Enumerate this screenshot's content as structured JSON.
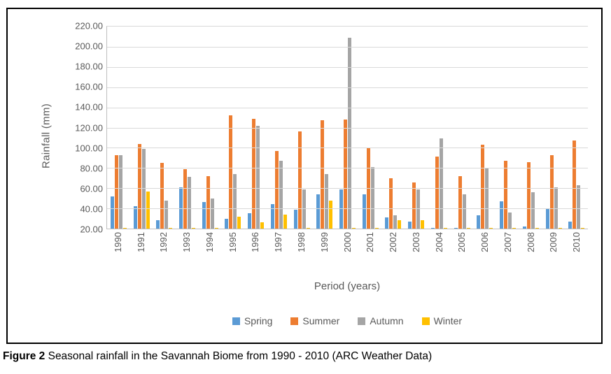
{
  "caption": {
    "figure_label": "Figure 2",
    "text": " Seasonal rainfall in the Savannah Biome from 1990 - 2010 (ARC Weather Data)"
  },
  "chart_data": {
    "type": "bar",
    "title": "",
    "xlabel": "Period (years)",
    "ylabel": "Rainfall (mm)",
    "ylim": [
      20,
      220
    ],
    "ytick_step": 20,
    "ytick_labels": [
      "220.00",
      "200.00",
      "180.00",
      "160.00",
      "140.00",
      "120.00",
      "100.00",
      "80.00",
      "60.00",
      "40.00",
      "20.00"
    ],
    "grid": true,
    "legend_position": "bottom",
    "categories": [
      "1990",
      "1991",
      "1992",
      "1993",
      "1994",
      "1995",
      "1996",
      "1997",
      "1998",
      "1999",
      "2000",
      "2001",
      "2002",
      "2003",
      "2004",
      "2005",
      "2006",
      "2007",
      "2008",
      "2009",
      "2010"
    ],
    "series": [
      {
        "name": "Spring",
        "color": "#5B9BD5",
        "values": [
          52,
          42,
          28,
          61,
          46,
          30,
          35,
          44,
          39,
          54,
          59,
          54,
          31,
          27,
          21,
          21,
          33,
          47,
          22,
          40,
          27
        ]
      },
      {
        "name": "Summer",
        "color": "#ED7D31",
        "values": [
          93,
          104,
          85,
          79,
          72,
          132,
          129,
          97,
          116,
          127,
          128,
          100,
          70,
          66,
          91,
          72,
          103,
          87,
          86,
          93,
          107
        ]
      },
      {
        "name": "Autumn",
        "color": "#A5A5A5",
        "values": [
          93,
          99,
          48,
          71,
          50,
          74,
          122,
          87,
          59,
          74,
          209,
          81,
          33,
          59,
          109,
          54,
          80,
          36,
          56,
          61,
          63
        ]
      },
      {
        "name": "Winter",
        "color": "#FFC000",
        "values": [
          21,
          57,
          21,
          21,
          21,
          32,
          26,
          34,
          21,
          48,
          21,
          21,
          28,
          28,
          21,
          21,
          21,
          21,
          21,
          21,
          21
        ]
      }
    ]
  }
}
